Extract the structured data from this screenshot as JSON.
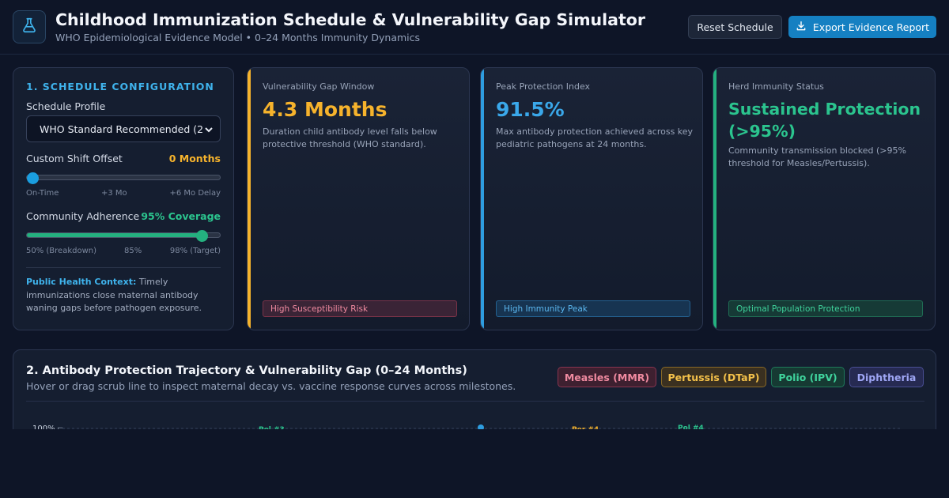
{
  "header": {
    "title": "Childhood Immunization Schedule & Vulnerability Gap Simulator",
    "subtitle": "WHO Epidemiological Evidence Model • 0–24 Months Immunity Dynamics",
    "logo_icon": "flask-icon",
    "reset_label": "Reset Schedule",
    "export_label": "Export Evidence Report",
    "export_icon": "download-icon"
  },
  "config": {
    "heading": "1. SCHEDULE CONFIGURATION",
    "profile_label": "Schedule Profile",
    "profile_value": "WHO Standard Recommended (2",
    "shift_label": "Custom Shift Offset",
    "shift_value": "0 Months",
    "shift_fraction": 0,
    "shift_ticks": [
      "On-Time",
      "+3 Mo",
      "+6 Mo Delay"
    ],
    "adherence_label": "Community Adherence",
    "adherence_value": "95% Coverage",
    "adherence_fraction": 0.9,
    "adherence_ticks": [
      "50% (Breakdown)",
      "85%",
      "98% (Target)"
    ],
    "context_heading": "Public Health Context:",
    "context_text": " Timely immunizations close maternal antibody waning gaps before pathogen exposure."
  },
  "cards": [
    {
      "label": "Vulnerability Gap Window",
      "value": "4.3 Months",
      "desc": "Duration child antibody level falls below protective threshold (WHO standard).",
      "badge": "High Susceptibility Risk",
      "color": "#f6b32c"
    },
    {
      "label": "Peak Protection Index",
      "value": "91.5%",
      "desc": "Max antibody protection achieved across key pediatric pathogens at 24 months.",
      "badge": "High Immunity Peak",
      "color": "#3aa8ea"
    },
    {
      "label": "Herd Immunity Status",
      "value": "Sustained Protection (>95%)",
      "desc": "Community transmission blocked (>95% threshold for Measles/Pertussis).",
      "badge": "Optimal Population Protection",
      "color": "#2bc48e"
    }
  ],
  "trajectory": {
    "title": "2. Antibody Protection Trajectory & Vulnerability Gap (0–24 Months)",
    "subtitle": "Hover or drag scrub line to inspect maternal decay vs. vaccine response curves across milestones.",
    "chips": [
      {
        "label": "Measles (MMR)",
        "color": "#f08aa0"
      },
      {
        "label": "Pertussis (DTaP)",
        "color": "#f4c14a"
      },
      {
        "label": "Polio (IPV)",
        "color": "#3fd39c"
      },
      {
        "label": "Diphtheria",
        "color": "#9fa6f5"
      }
    ],
    "y_top_label": "100%",
    "milestones": [
      {
        "label": "Pol #3",
        "color": "#2bc48e"
      },
      {
        "label": "Per #4",
        "color": "#f6b32c"
      },
      {
        "label": "Pol #4",
        "color": "#2bc48e"
      }
    ]
  }
}
